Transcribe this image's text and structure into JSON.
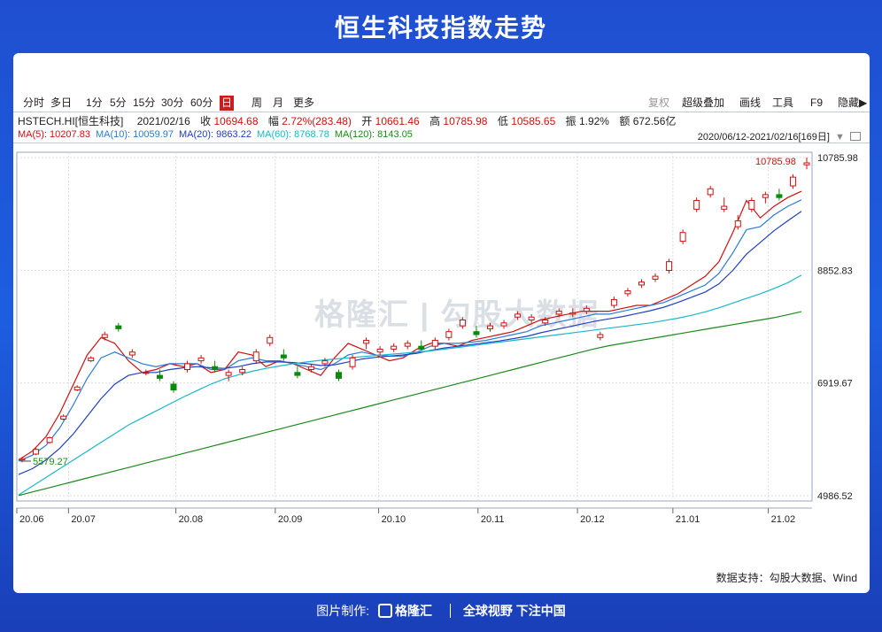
{
  "title": "恒生科技指数走势",
  "toolbar": {
    "timeframes": [
      "分时",
      "多日",
      "1分",
      "5分",
      "15分",
      "30分",
      "60分",
      "日",
      "周",
      "月",
      "更多"
    ],
    "active": "日",
    "right_items": [
      "复权",
      "超级叠加",
      "画线",
      "工具",
      "F9",
      "隐藏"
    ]
  },
  "info": {
    "code": "HSTECH.HI[恒生科技]",
    "date": "2021/02/16",
    "close_label": "收",
    "close": "10694.68",
    "amp_label": "幅",
    "amp": "2.72%(283.48)",
    "open_label": "开",
    "open": "10661.46",
    "high_label": "高",
    "high": "10785.98",
    "low_label": "低",
    "low": "10585.65",
    "swing_label": "振",
    "swing": "1.92%",
    "amount_label": "额",
    "amount": "672.56亿"
  },
  "ma_legend": [
    {
      "text": "MA(5): 10207.83",
      "color": "#d01010"
    },
    {
      "text": "MA(10): 10059.97",
      "color": "#2a7bd6"
    },
    {
      "text": "MA(20): 9863.22",
      "color": "#2040c0"
    },
    {
      "text": "MA(60): 8768.78",
      "color": "#18b8c8"
    },
    {
      "text": "MA(120): 8143.05",
      "color": "#1a8a1a"
    }
  ],
  "range_text": "2020/06/12-2021/02/16[169日]",
  "watermark": "格隆汇 | 勾股大数据",
  "credit": "数据支持：勾股大数据、Wind",
  "footer": {
    "label": "图片制作:",
    "brand": "格隆汇",
    "slogan": "全球视野 下注中国"
  },
  "chart_data": {
    "type": "candlestick",
    "ylim": [
      4986.52,
      10785.98
    ],
    "y_ticks": [
      10785.98,
      8852.83,
      6919.67,
      4986.52
    ],
    "y_tick_labels": [
      "10785.98",
      "8852.83",
      "6919.67",
      "4986.52"
    ],
    "x_ticks": [
      "20.06",
      "20.07",
      "20.08",
      "20.09",
      "20.10",
      "20.11",
      "20.12",
      "21.01",
      "21.02"
    ],
    "high_annotation": "10785.98",
    "low_annotation": "5579.27",
    "series": [
      {
        "name": "MA(5)",
        "color": "#d01010",
        "values": [
          5600,
          5750,
          6000,
          6400,
          6900,
          7400,
          7700,
          7600,
          7300,
          7100,
          7150,
          7250,
          7200,
          7250,
          7100,
          7150,
          7450,
          7400,
          7200,
          7300,
          7250,
          7150,
          7050,
          7350,
          7600,
          7500,
          7400,
          7300,
          7350,
          7500,
          7600,
          7600,
          7550,
          7650,
          7700,
          7750,
          7800,
          7900,
          8000,
          8050,
          8100,
          8150,
          8150,
          8150,
          8200,
          8250,
          8250,
          8350,
          8450,
          8600,
          8750,
          9000,
          9500,
          10050,
          9750,
          9950,
          10100,
          10207.83
        ]
      },
      {
        "name": "MA(10)",
        "color": "#2a7bd6",
        "values": [
          5580,
          5680,
          5850,
          6150,
          6550,
          7000,
          7350,
          7450,
          7350,
          7250,
          7200,
          7250,
          7250,
          7250,
          7150,
          7150,
          7300,
          7350,
          7300,
          7300,
          7250,
          7200,
          7150,
          7250,
          7400,
          7450,
          7400,
          7380,
          7380,
          7450,
          7550,
          7600,
          7600,
          7620,
          7650,
          7700,
          7750,
          7800,
          7900,
          7950,
          8000,
          8050,
          8100,
          8100,
          8150,
          8200,
          8250,
          8300,
          8400,
          8500,
          8600,
          8800,
          9150,
          9550,
          9600,
          9800,
          9950,
          10059.97
        ]
      },
      {
        "name": "MA(20)",
        "color": "#2040c0",
        "values": [
          5350,
          5450,
          5600,
          5800,
          6050,
          6350,
          6650,
          6900,
          7050,
          7100,
          7100,
          7150,
          7180,
          7200,
          7180,
          7170,
          7200,
          7250,
          7280,
          7280,
          7270,
          7250,
          7220,
          7230,
          7280,
          7330,
          7360,
          7380,
          7400,
          7430,
          7480,
          7520,
          7550,
          7580,
          7610,
          7640,
          7680,
          7720,
          7780,
          7830,
          7880,
          7930,
          7980,
          8020,
          8060,
          8110,
          8160,
          8220,
          8300,
          8390,
          8480,
          8620,
          8850,
          9130,
          9330,
          9530,
          9700,
          9863.22
        ]
      },
      {
        "name": "MA(60)",
        "color": "#18b8c8",
        "values": [
          5000,
          5150,
          5300,
          5450,
          5600,
          5750,
          5900,
          6050,
          6200,
          6320,
          6440,
          6560,
          6680,
          6790,
          6900,
          6990,
          7060,
          7120,
          7170,
          7210,
          7250,
          7280,
          7310,
          7330,
          7350,
          7370,
          7390,
          7410,
          7430,
          7450,
          7470,
          7500,
          7530,
          7560,
          7590,
          7620,
          7650,
          7680,
          7710,
          7740,
          7770,
          7800,
          7830,
          7860,
          7890,
          7920,
          7950,
          7990,
          8030,
          8080,
          8140,
          8210,
          8290,
          8370,
          8450,
          8540,
          8640,
          8768.78
        ]
      },
      {
        "name": "MA(120)",
        "color": "#1a8a1a",
        "values": [
          4990,
          5050,
          5110,
          5170,
          5230,
          5290,
          5350,
          5410,
          5470,
          5530,
          5590,
          5650,
          5710,
          5770,
          5830,
          5890,
          5950,
          6010,
          6070,
          6130,
          6190,
          6250,
          6310,
          6370,
          6430,
          6490,
          6550,
          6610,
          6670,
          6730,
          6790,
          6850,
          6910,
          6970,
          7030,
          7090,
          7150,
          7210,
          7270,
          7330,
          7390,
          7450,
          7510,
          7560,
          7600,
          7640,
          7680,
          7720,
          7760,
          7800,
          7840,
          7880,
          7920,
          7960,
          8000,
          8040,
          8090,
          8143.05
        ]
      }
    ],
    "candles": [
      [
        5600,
        5650,
        5560,
        5620
      ],
      [
        5700,
        5800,
        5680,
        5780
      ],
      [
        5900,
        6000,
        5880,
        5980
      ],
      [
        6300,
        6380,
        6280,
        6350
      ],
      [
        6800,
        6880,
        6780,
        6850
      ],
      [
        7300,
        7380,
        7280,
        7350
      ],
      [
        7700,
        7800,
        7650,
        7750
      ],
      [
        7900,
        7950,
        7800,
        7850
      ],
      [
        7400,
        7500,
        7350,
        7450
      ],
      [
        7100,
        7150,
        7050,
        7100
      ],
      [
        7050,
        7150,
        6950,
        7000
      ],
      [
        6900,
        6950,
        6750,
        6800
      ],
      [
        7150,
        7300,
        7100,
        7250
      ],
      [
        7300,
        7400,
        7250,
        7350
      ],
      [
        7200,
        7300,
        7100,
        7150
      ],
      [
        7050,
        7150,
        6950,
        7100
      ],
      [
        7100,
        7200,
        7050,
        7150
      ],
      [
        7300,
        7500,
        7250,
        7450
      ],
      [
        7600,
        7750,
        7550,
        7700
      ],
      [
        7400,
        7500,
        7300,
        7350
      ],
      [
        7100,
        7200,
        7000,
        7050
      ],
      [
        7150,
        7250,
        7100,
        7200
      ],
      [
        7250,
        7350,
        7200,
        7300
      ],
      [
        7100,
        7150,
        6950,
        7000
      ],
      [
        7200,
        7400,
        7150,
        7350
      ],
      [
        7600,
        7700,
        7500,
        7650
      ],
      [
        7450,
        7550,
        7400,
        7500
      ],
      [
        7500,
        7600,
        7450,
        7550
      ],
      [
        7550,
        7650,
        7500,
        7600
      ],
      [
        7550,
        7650,
        7480,
        7500
      ],
      [
        7550,
        7700,
        7500,
        7650
      ],
      [
        7700,
        7850,
        7650,
        7800
      ],
      [
        7900,
        8050,
        7850,
        8000
      ],
      [
        7800,
        7900,
        7700,
        7750
      ],
      [
        7850,
        7950,
        7800,
        7900
      ],
      [
        7900,
        8000,
        7850,
        7950
      ],
      [
        8050,
        8150,
        8000,
        8100
      ],
      [
        8000,
        8100,
        7950,
        8050
      ],
      [
        7950,
        8050,
        7900,
        8000
      ],
      [
        8100,
        8200,
        8050,
        8150
      ],
      [
        8100,
        8200,
        8050,
        8120
      ],
      [
        8150,
        8250,
        8100,
        8200
      ],
      [
        7700,
        7800,
        7650,
        7750
      ],
      [
        8250,
        8400,
        8200,
        8350
      ],
      [
        8450,
        8550,
        8400,
        8500
      ],
      [
        8600,
        8700,
        8550,
        8650
      ],
      [
        8700,
        8800,
        8650,
        8750
      ],
      [
        8850,
        9050,
        8800,
        9000
      ],
      [
        9350,
        9550,
        9300,
        9500
      ],
      [
        9900,
        10100,
        9850,
        10050
      ],
      [
        10150,
        10300,
        10100,
        10250
      ],
      [
        9900,
        10100,
        9850,
        9950
      ],
      [
        9600,
        9800,
        9550,
        9700
      ],
      [
        9900,
        10100,
        9850,
        10050
      ],
      [
        10100,
        10200,
        10000,
        10150
      ],
      [
        10150,
        10250,
        10050,
        10100
      ],
      [
        10300,
        10500,
        10250,
        10450
      ],
      [
        10661.46,
        10785.98,
        10585.65,
        10694.68
      ]
    ]
  }
}
